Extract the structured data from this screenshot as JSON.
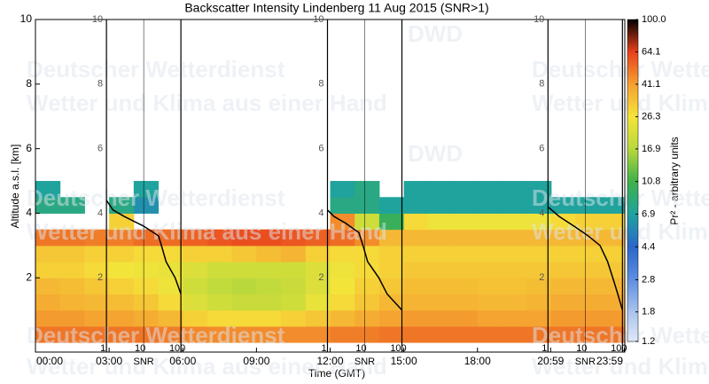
{
  "chart_data": {
    "type": "heatmap",
    "title": "Backscatter Intensity Lindenberg 11 Aug 2015 (SNR>1)",
    "xlabel": "Time (GMT)",
    "ylabel": "Altitude a.s.l. [km]",
    "xlim": [
      0,
      24
    ],
    "xticks": [
      {
        "value": 0,
        "label": "00:00"
      },
      {
        "value": 3,
        "label": "03:00"
      },
      {
        "value": 6,
        "label": "06:00"
      },
      {
        "value": 9,
        "label": "09:00"
      },
      {
        "value": 12,
        "label": "12:00"
      },
      {
        "value": 15,
        "label": "15:00"
      },
      {
        "value": 18,
        "label": "18:00"
      },
      {
        "value": 20.98,
        "label": "20:59"
      },
      {
        "value": 23.98,
        "label": "23:59"
      }
    ],
    "ylim": [
      -0.3,
      10
    ],
    "yticks": [
      2,
      4,
      6,
      8,
      10
    ],
    "x_bins": [
      0,
      1,
      2,
      3,
      4,
      5,
      6,
      7,
      8,
      9,
      10,
      11,
      12,
      13,
      14,
      15,
      16,
      17,
      18,
      19,
      20,
      21,
      22,
      23,
      24
    ],
    "y_bins": [
      0,
      0.5,
      1,
      1.5,
      2,
      2.5,
      3,
      3.5,
      4,
      4.5,
      5
    ],
    "z": [
      [
        50,
        50,
        50,
        50,
        50,
        48,
        46,
        45,
        45,
        45,
        45,
        45,
        48,
        48,
        50,
        50,
        50,
        50,
        50,
        50,
        50,
        50,
        50,
        50
      ],
      [
        42,
        42,
        40,
        40,
        38,
        35,
        30,
        28,
        28,
        28,
        30,
        32,
        35,
        38,
        40,
        42,
        42,
        42,
        40,
        40,
        40,
        42,
        42,
        42
      ],
      [
        38,
        36,
        35,
        34,
        32,
        28,
        22,
        20,
        19,
        19,
        20,
        24,
        28,
        32,
        35,
        36,
        36,
        36,
        35,
        35,
        36,
        38,
        38,
        38
      ],
      [
        35,
        34,
        32,
        30,
        28,
        25,
        20,
        18,
        17,
        18,
        19,
        22,
        26,
        30,
        32,
        34,
        34,
        34,
        33,
        33,
        34,
        35,
        35,
        35
      ],
      [
        30,
        30,
        28,
        26,
        25,
        24,
        22,
        20,
        20,
        20,
        20,
        22,
        25,
        28,
        30,
        32,
        32,
        32,
        32,
        32,
        32,
        32,
        32,
        32
      ],
      [
        32,
        32,
        30,
        30,
        28,
        28,
        30,
        30,
        32,
        34,
        36,
        30,
        28,
        28,
        30,
        30,
        30,
        30,
        30,
        30,
        30,
        30,
        30,
        30
      ],
      [
        50,
        50,
        48,
        48,
        52,
        52,
        55,
        58,
        60,
        60,
        58,
        55,
        52,
        45,
        35,
        35,
        35,
        35,
        35,
        35,
        35,
        35,
        35,
        35
      ],
      [
        null,
        null,
        null,
        30,
        null,
        null,
        null,
        null,
        null,
        null,
        null,
        null,
        45,
        20,
        10,
        28,
        25,
        25,
        25,
        25,
        25,
        28,
        30,
        30
      ],
      [
        8,
        8,
        null,
        8,
        6,
        null,
        null,
        null,
        null,
        null,
        null,
        null,
        8,
        8,
        7,
        7,
        7,
        7,
        7,
        7,
        7,
        7,
        7,
        7
      ],
      [
        7,
        null,
        null,
        null,
        7,
        null,
        null,
        null,
        null,
        null,
        null,
        null,
        7,
        8,
        null,
        7,
        7,
        7,
        7,
        7,
        7,
        null,
        null,
        null
      ]
    ],
    "colorbar_label": "Pr² - arbitrary units",
    "colorbar_log": true,
    "colorbar_ticks": [
      1.2,
      1.8,
      2.8,
      4.4,
      6.9,
      10.8,
      16.9,
      26.3,
      41.1,
      64.1,
      {
        "value": 100,
        "label": "100.0"
      }
    ],
    "colors": [
      "#dfe8f7",
      "#a9c4ee",
      "#5f8fe0",
      "#2a66c8",
      "#1fa3a0",
      "#3fb24a",
      "#b8d83c",
      "#f5e43a",
      "#f5a030",
      "#e8401c",
      "#000000"
    ],
    "snr_panels": [
      {
        "xlabel": "SNR",
        "xlim": [
          1,
          100
        ],
        "xticks": [
          1,
          10,
          100
        ],
        "snr": [
          1,
          1.5,
          3,
          10,
          25,
          30,
          40,
          70,
          100
        ],
        "altitude": [
          4.4,
          4.1,
          3.9,
          3.6,
          3.3,
          3.0,
          2.5,
          2.0,
          1.5
        ]
      },
      {
        "xlabel": "SNR",
        "xlim": [
          1,
          100
        ],
        "xticks": [
          1,
          10,
          100
        ],
        "snr": [
          1,
          1.5,
          3,
          7,
          9,
          12,
          24,
          40,
          100
        ],
        "altitude": [
          4.1,
          3.9,
          3.7,
          3.4,
          3.0,
          2.5,
          2.0,
          1.5,
          1.0
        ]
      },
      {
        "xlabel": "SNR",
        "xlim": [
          1,
          100
        ],
        "xticks": [
          1,
          10,
          100
        ],
        "snr": [
          1,
          2,
          5,
          12,
          25,
          40,
          55,
          75,
          100
        ],
        "altitude": [
          4.2,
          3.9,
          3.6,
          3.3,
          3.0,
          2.5,
          2.0,
          1.5,
          1.0
        ]
      }
    ],
    "watermark": [
      "Deutscher Wetterdienst",
      "Wetter und Klima aus einer Hand",
      "DWD"
    ]
  }
}
